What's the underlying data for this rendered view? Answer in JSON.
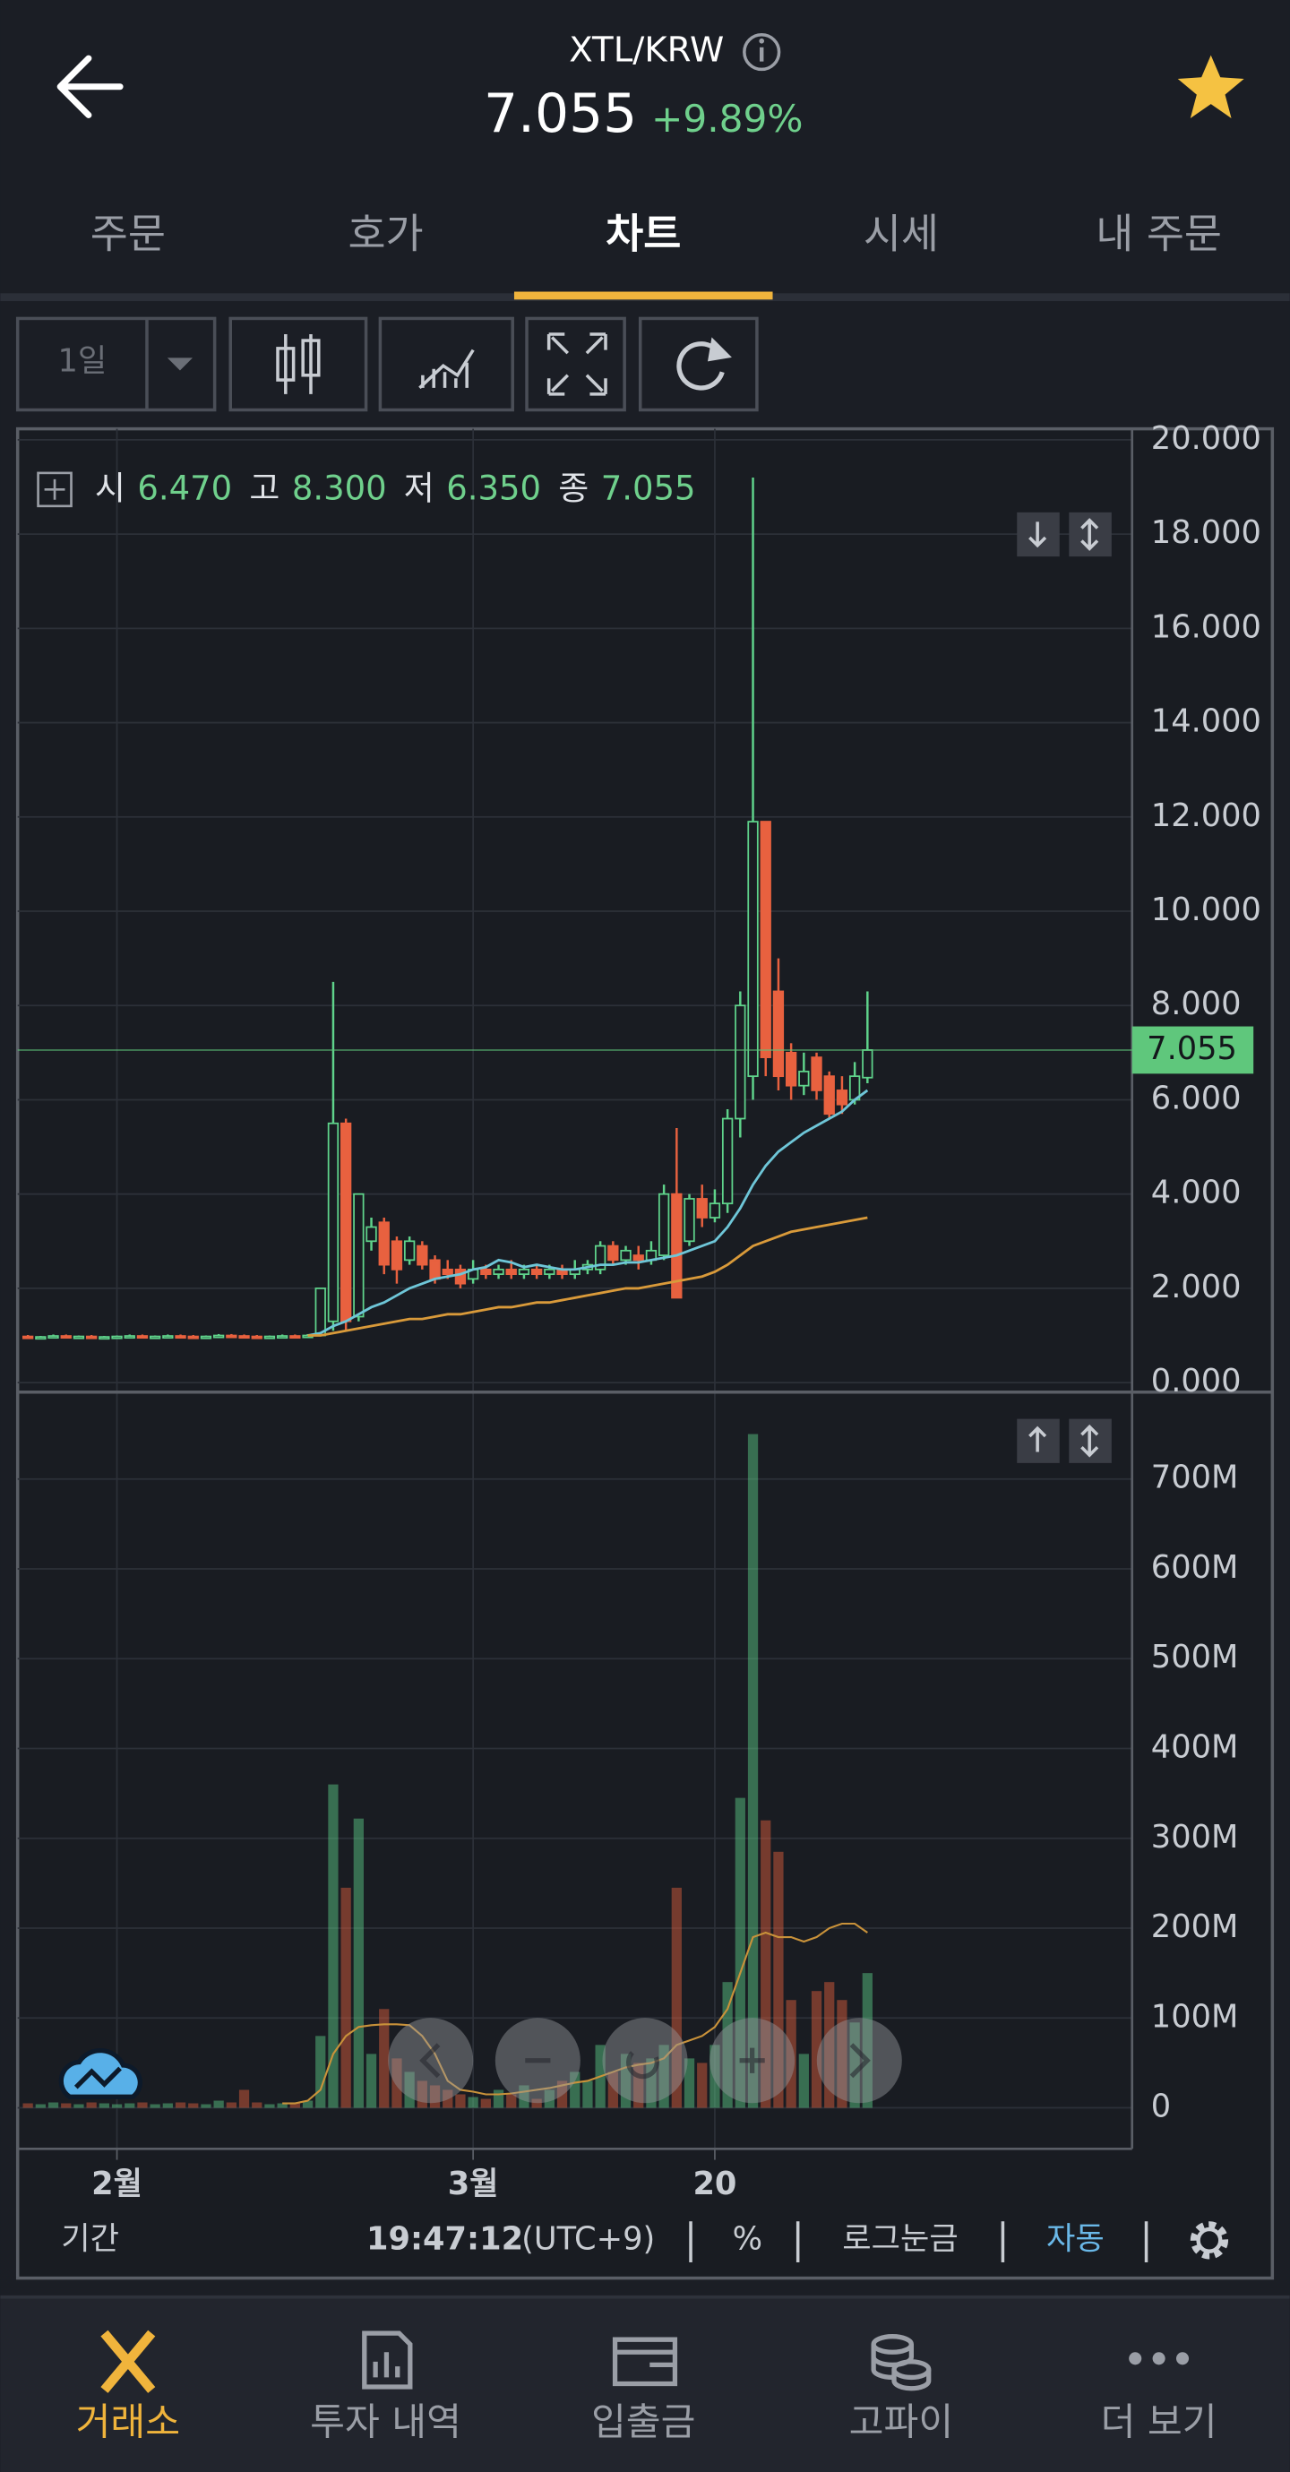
{
  "header": {
    "pair": "XTL/KRW",
    "price": "7.055",
    "change": "+9.89%"
  },
  "tabs": {
    "items": [
      "주문",
      "호가",
      "차트",
      "시세",
      "내 주문"
    ],
    "active": 2
  },
  "toolbar": {
    "period": "1일"
  },
  "chart_data": {
    "type": "candlestick",
    "ohlc_legend": [
      {
        "label": "시",
        "value": "6.470"
      },
      {
        "label": "고",
        "value": "8.300"
      },
      {
        "label": "저",
        "value": "6.350"
      },
      {
        "label": "종",
        "value": "7.055"
      }
    ],
    "categories": [
      null,
      null,
      null,
      null,
      null,
      null,
      null,
      "2월",
      null,
      null,
      null,
      null,
      null,
      null,
      null,
      null,
      null,
      null,
      null,
      null,
      null,
      null,
      null,
      null,
      null,
      null,
      null,
      null,
      null,
      null,
      null,
      null,
      null,
      null,
      null,
      "3월",
      null,
      null,
      null,
      null,
      null,
      null,
      null,
      null,
      null,
      null,
      null,
      null,
      null,
      null,
      null,
      null,
      null,
      null,
      "20",
      null,
      null,
      null,
      null,
      null,
      null,
      null,
      null,
      null,
      null,
      null,
      null
    ],
    "open": [
      0.98,
      0.96,
      0.97,
      0.99,
      0.97,
      0.98,
      0.96,
      0.97,
      0.98,
      0.99,
      0.97,
      0.98,
      0.99,
      0.98,
      0.97,
      0.98,
      1.0,
      0.99,
      0.98,
      0.97,
      0.98,
      0.99,
      0.98,
      1.0,
      1.3,
      5.5,
      1.4,
      3.0,
      3.4,
      3.0,
      2.6,
      2.9,
      2.6,
      2.4,
      2.4,
      2.2,
      2.4,
      2.3,
      2.4,
      2.3,
      2.4,
      2.3,
      2.4,
      2.3,
      2.4,
      2.4,
      2.9,
      2.6,
      2.7,
      2.6,
      2.7,
      4.0,
      3.0,
      3.9,
      3.5,
      3.8,
      5.6,
      6.5,
      11.9,
      8.3,
      7.0,
      6.3,
      6.9,
      6.5,
      6.2,
      6.0,
      6.47
    ],
    "high": [
      1.01,
      0.99,
      1.02,
      1.02,
      1.0,
      1.01,
      0.99,
      1.0,
      1.02,
      1.02,
      1.0,
      1.02,
      1.02,
      1.01,
      1.0,
      1.03,
      1.03,
      1.02,
      1.01,
      1.0,
      1.02,
      1.02,
      1.03,
      2.0,
      8.5,
      5.6,
      4.0,
      3.5,
      3.5,
      3.1,
      3.1,
      3.0,
      2.7,
      2.6,
      2.5,
      2.6,
      2.5,
      2.5,
      2.6,
      2.5,
      2.5,
      2.5,
      2.5,
      2.6,
      2.6,
      3.0,
      3.0,
      2.9,
      2.9,
      3.0,
      4.2,
      5.4,
      4.0,
      4.2,
      4.1,
      5.8,
      8.3,
      19.2,
      11.9,
      9.0,
      7.2,
      7.0,
      7.0,
      6.6,
      6.5,
      6.8,
      8.3
    ],
    "low": [
      0.93,
      0.93,
      0.94,
      0.94,
      0.95,
      0.93,
      0.93,
      0.94,
      0.95,
      0.94,
      0.95,
      0.96,
      0.95,
      0.94,
      0.95,
      0.95,
      0.96,
      0.95,
      0.94,
      0.95,
      0.96,
      0.95,
      0.96,
      0.98,
      1.1,
      1.1,
      1.3,
      2.8,
      2.3,
      2.1,
      2.5,
      2.4,
      2.1,
      2.2,
      2.0,
      2.1,
      2.2,
      2.2,
      2.2,
      2.2,
      2.2,
      2.2,
      2.2,
      2.2,
      2.3,
      2.3,
      2.5,
      2.5,
      2.4,
      2.5,
      2.6,
      1.8,
      2.9,
      3.3,
      3.4,
      3.6,
      5.2,
      6.0,
      6.5,
      6.2,
      6.0,
      6.1,
      6.0,
      5.6,
      5.7,
      5.9,
      6.35
    ],
    "close": [
      0.96,
      0.97,
      0.99,
      0.97,
      0.98,
      0.96,
      0.97,
      0.98,
      0.99,
      0.97,
      0.98,
      0.99,
      0.98,
      0.97,
      0.98,
      1.0,
      0.99,
      0.98,
      0.97,
      0.98,
      0.99,
      0.98,
      1.0,
      2.0,
      5.5,
      1.3,
      4.0,
      3.3,
      2.5,
      2.4,
      3.0,
      2.5,
      2.2,
      2.3,
      2.1,
      2.4,
      2.3,
      2.4,
      2.3,
      2.4,
      2.3,
      2.4,
      2.3,
      2.4,
      2.5,
      2.9,
      2.6,
      2.8,
      2.6,
      2.8,
      4.0,
      1.8,
      3.9,
      3.5,
      3.8,
      5.6,
      8.0,
      11.9,
      6.9,
      6.5,
      6.3,
      6.6,
      6.2,
      5.7,
      5.9,
      6.5,
      7.055
    ],
    "up_color": "#5fd38b",
    "down_color": "#e8613f",
    "ylim": [
      0,
      20.2
    ],
    "yticks": [
      {
        "value": 0,
        "label": "0.000"
      },
      {
        "value": 2,
        "label": "2.000"
      },
      {
        "value": 4,
        "label": "4.000"
      },
      {
        "value": 6,
        "label": "6.000"
      },
      {
        "value": 8,
        "label": "8.000"
      },
      {
        "value": 10,
        "label": "10.000"
      },
      {
        "value": 12,
        "label": "12.000"
      },
      {
        "value": 14,
        "label": "14.000"
      },
      {
        "value": 16,
        "label": "16.000"
      },
      {
        "value": 18,
        "label": "18.000"
      },
      {
        "value": 20,
        "label": "20.000"
      }
    ],
    "moving_averages": [
      {
        "color": "#6ec6d8",
        "values": [
          null,
          null,
          null,
          null,
          null,
          null,
          null,
          null,
          null,
          null,
          null,
          null,
          null,
          null,
          null,
          null,
          null,
          null,
          null,
          null,
          null,
          null,
          1.0,
          1.05,
          1.2,
          1.3,
          1.45,
          1.6,
          1.7,
          1.85,
          2.0,
          2.1,
          2.2,
          2.25,
          2.3,
          2.4,
          2.45,
          2.6,
          2.55,
          2.45,
          2.5,
          2.45,
          2.4,
          2.4,
          2.45,
          2.5,
          2.5,
          2.55,
          2.55,
          2.6,
          2.65,
          2.7,
          2.8,
          2.9,
          3.0,
          3.3,
          3.7,
          4.2,
          4.6,
          4.9,
          5.1,
          5.3,
          5.45,
          5.6,
          5.75,
          6.0,
          6.2
        ]
      },
      {
        "color": "#d99a3a",
        "values": [
          null,
          null,
          null,
          null,
          null,
          null,
          null,
          null,
          null,
          null,
          null,
          null,
          null,
          null,
          null,
          null,
          null,
          null,
          null,
          null,
          null,
          null,
          1.0,
          1.0,
          1.05,
          1.1,
          1.15,
          1.2,
          1.25,
          1.3,
          1.35,
          1.35,
          1.4,
          1.45,
          1.45,
          1.5,
          1.55,
          1.6,
          1.6,
          1.65,
          1.7,
          1.7,
          1.75,
          1.8,
          1.85,
          1.9,
          1.95,
          2.0,
          2.0,
          2.05,
          2.1,
          2.15,
          2.2,
          2.25,
          2.35,
          2.5,
          2.7,
          2.9,
          3.0,
          3.1,
          3.2,
          3.25,
          3.3,
          3.35,
          3.4,
          3.45,
          3.5
        ]
      }
    ],
    "last_price": {
      "value": 7.055,
      "label": "7.055",
      "color": "#5fc77c"
    },
    "volume": {
      "values": [
        5000000,
        4000000,
        6000000,
        5000000,
        4000000,
        6000000,
        5000000,
        4000000,
        5000000,
        6000000,
        4000000,
        5000000,
        6000000,
        5000000,
        4000000,
        8000000,
        6000000,
        20000000,
        6000000,
        4000000,
        5000000,
        6000000,
        8000000,
        80000000,
        360000000,
        245000000,
        322000000,
        60000000,
        110000000,
        55000000,
        40000000,
        30000000,
        25000000,
        20000000,
        15000000,
        12000000,
        10000000,
        20000000,
        15000000,
        25000000,
        10000000,
        20000000,
        30000000,
        40000000,
        30000000,
        70000000,
        40000000,
        60000000,
        50000000,
        55000000,
        70000000,
        245000000,
        55000000,
        50000000,
        70000000,
        140000000,
        345000000,
        750000000,
        320000000,
        285000000,
        120000000,
        60000000,
        130000000,
        140000000,
        120000000,
        95000000,
        150000000
      ],
      "ylim": [
        0,
        795000000
      ],
      "yticks": [
        0,
        {
          "value": 100000000,
          "label": "100M"
        },
        {
          "value": 200000000,
          "label": "200M"
        },
        {
          "value": 300000000,
          "label": "300M"
        },
        {
          "value": 400000000,
          "label": "400M"
        },
        {
          "value": 500000000,
          "label": "500M"
        },
        {
          "value": 600000000,
          "label": "600M"
        },
        {
          "value": 700000000,
          "label": "700M"
        }
      ],
      "ma": {
        "color": "#c9923a",
        "values": [
          null,
          null,
          null,
          null,
          null,
          null,
          null,
          null,
          null,
          null,
          null,
          null,
          null,
          null,
          null,
          null,
          null,
          null,
          null,
          null,
          5000000,
          5000000,
          8000000,
          20000000,
          60000000,
          80000000,
          90000000,
          92000000,
          93000000,
          93000000,
          92000000,
          80000000,
          60000000,
          30000000,
          20000000,
          18000000,
          15000000,
          15000000,
          16000000,
          18000000,
          20000000,
          22000000,
          25000000,
          28000000,
          30000000,
          35000000,
          40000000,
          45000000,
          48000000,
          50000000,
          55000000,
          70000000,
          75000000,
          80000000,
          90000000,
          110000000,
          150000000,
          190000000,
          195000000,
          190000000,
          190000000,
          185000000,
          190000000,
          200000000,
          205000000,
          205000000,
          195000000
        ]
      }
    },
    "grid": true
  },
  "footer": {
    "period": "기간",
    "time": "19:47:12",
    "timezone": "(UTC+9)",
    "percent": "%",
    "log_scale": "로그눈금",
    "auto": "자동"
  },
  "nav": {
    "items": [
      "거래소",
      "투자 내역",
      "입출금",
      "고파이",
      "더 보기"
    ],
    "active": 0
  }
}
